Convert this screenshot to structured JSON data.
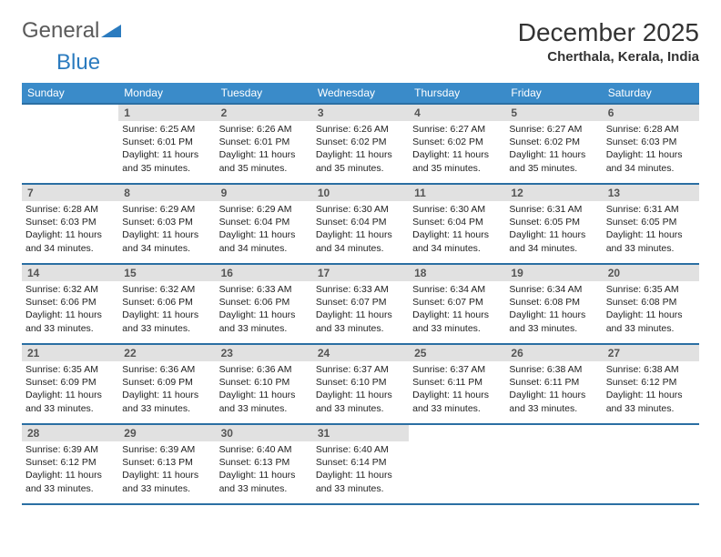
{
  "logo": {
    "part1": "General",
    "part2": "Blue"
  },
  "title": "December 2025",
  "location": "Cherthala, Kerala, India",
  "colors": {
    "header_bg": "#3a8bc9",
    "header_border": "#2b6fa3",
    "daynum_bg": "#e1e1e1",
    "text": "#222222",
    "logo_gray": "#5a5a5a",
    "logo_blue": "#2b7bbf"
  },
  "weekdays": [
    "Sunday",
    "Monday",
    "Tuesday",
    "Wednesday",
    "Thursday",
    "Friday",
    "Saturday"
  ],
  "weeks": [
    [
      null,
      {
        "d": "1",
        "sr": "6:25 AM",
        "ss": "6:01 PM",
        "dl": "11 hours and 35 minutes."
      },
      {
        "d": "2",
        "sr": "6:26 AM",
        "ss": "6:01 PM",
        "dl": "11 hours and 35 minutes."
      },
      {
        "d": "3",
        "sr": "6:26 AM",
        "ss": "6:02 PM",
        "dl": "11 hours and 35 minutes."
      },
      {
        "d": "4",
        "sr": "6:27 AM",
        "ss": "6:02 PM",
        "dl": "11 hours and 35 minutes."
      },
      {
        "d": "5",
        "sr": "6:27 AM",
        "ss": "6:02 PM",
        "dl": "11 hours and 35 minutes."
      },
      {
        "d": "6",
        "sr": "6:28 AM",
        "ss": "6:03 PM",
        "dl": "11 hours and 34 minutes."
      }
    ],
    [
      {
        "d": "7",
        "sr": "6:28 AM",
        "ss": "6:03 PM",
        "dl": "11 hours and 34 minutes."
      },
      {
        "d": "8",
        "sr": "6:29 AM",
        "ss": "6:03 PM",
        "dl": "11 hours and 34 minutes."
      },
      {
        "d": "9",
        "sr": "6:29 AM",
        "ss": "6:04 PM",
        "dl": "11 hours and 34 minutes."
      },
      {
        "d": "10",
        "sr": "6:30 AM",
        "ss": "6:04 PM",
        "dl": "11 hours and 34 minutes."
      },
      {
        "d": "11",
        "sr": "6:30 AM",
        "ss": "6:04 PM",
        "dl": "11 hours and 34 minutes."
      },
      {
        "d": "12",
        "sr": "6:31 AM",
        "ss": "6:05 PM",
        "dl": "11 hours and 34 minutes."
      },
      {
        "d": "13",
        "sr": "6:31 AM",
        "ss": "6:05 PM",
        "dl": "11 hours and 33 minutes."
      }
    ],
    [
      {
        "d": "14",
        "sr": "6:32 AM",
        "ss": "6:06 PM",
        "dl": "11 hours and 33 minutes."
      },
      {
        "d": "15",
        "sr": "6:32 AM",
        "ss": "6:06 PM",
        "dl": "11 hours and 33 minutes."
      },
      {
        "d": "16",
        "sr": "6:33 AM",
        "ss": "6:06 PM",
        "dl": "11 hours and 33 minutes."
      },
      {
        "d": "17",
        "sr": "6:33 AM",
        "ss": "6:07 PM",
        "dl": "11 hours and 33 minutes."
      },
      {
        "d": "18",
        "sr": "6:34 AM",
        "ss": "6:07 PM",
        "dl": "11 hours and 33 minutes."
      },
      {
        "d": "19",
        "sr": "6:34 AM",
        "ss": "6:08 PM",
        "dl": "11 hours and 33 minutes."
      },
      {
        "d": "20",
        "sr": "6:35 AM",
        "ss": "6:08 PM",
        "dl": "11 hours and 33 minutes."
      }
    ],
    [
      {
        "d": "21",
        "sr": "6:35 AM",
        "ss": "6:09 PM",
        "dl": "11 hours and 33 minutes."
      },
      {
        "d": "22",
        "sr": "6:36 AM",
        "ss": "6:09 PM",
        "dl": "11 hours and 33 minutes."
      },
      {
        "d": "23",
        "sr": "6:36 AM",
        "ss": "6:10 PM",
        "dl": "11 hours and 33 minutes."
      },
      {
        "d": "24",
        "sr": "6:37 AM",
        "ss": "6:10 PM",
        "dl": "11 hours and 33 minutes."
      },
      {
        "d": "25",
        "sr": "6:37 AM",
        "ss": "6:11 PM",
        "dl": "11 hours and 33 minutes."
      },
      {
        "d": "26",
        "sr": "6:38 AM",
        "ss": "6:11 PM",
        "dl": "11 hours and 33 minutes."
      },
      {
        "d": "27",
        "sr": "6:38 AM",
        "ss": "6:12 PM",
        "dl": "11 hours and 33 minutes."
      }
    ],
    [
      {
        "d": "28",
        "sr": "6:39 AM",
        "ss": "6:12 PM",
        "dl": "11 hours and 33 minutes."
      },
      {
        "d": "29",
        "sr": "6:39 AM",
        "ss": "6:13 PM",
        "dl": "11 hours and 33 minutes."
      },
      {
        "d": "30",
        "sr": "6:40 AM",
        "ss": "6:13 PM",
        "dl": "11 hours and 33 minutes."
      },
      {
        "d": "31",
        "sr": "6:40 AM",
        "ss": "6:14 PM",
        "dl": "11 hours and 33 minutes."
      },
      null,
      null,
      null
    ]
  ],
  "labels": {
    "sunrise": "Sunrise:",
    "sunset": "Sunset:",
    "daylight": "Daylight:"
  }
}
